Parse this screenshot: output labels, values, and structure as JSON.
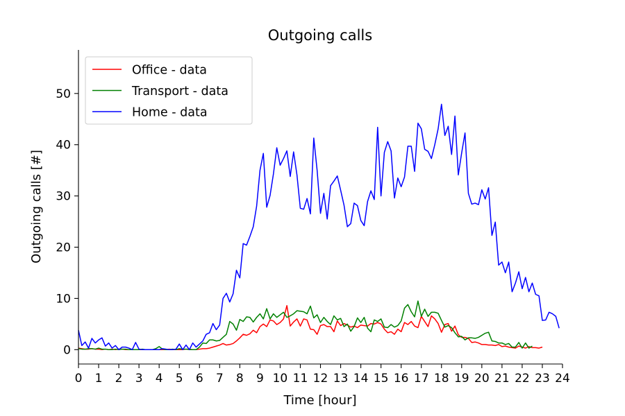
{
  "chart_data": {
    "type": "line",
    "title": "Outgoing calls",
    "xlabel": "Time [hour]",
    "ylabel": "Outgoing calls [#]",
    "xlim": [
      0,
      24
    ],
    "ylim": [
      -2.8,
      58.5
    ],
    "xticks": [
      "0",
      "1",
      "2",
      "3",
      "4",
      "5",
      "6",
      "7",
      "8",
      "9",
      "10",
      "11",
      "12",
      "13",
      "14",
      "15",
      "16",
      "17",
      "18",
      "19",
      "20",
      "21",
      "22",
      "23",
      "24"
    ],
    "yticks": [
      "0",
      "10",
      "20",
      "30",
      "40",
      "50"
    ],
    "grid": false,
    "legend_position": "top-left",
    "x_step_hours": 0.16667,
    "series": [
      {
        "name": "Office - data",
        "color": "#ff0000",
        "values": [
          0.3,
          0.2,
          0.1,
          0.1,
          0.2,
          0.1,
          0.1,
          0,
          0.1,
          0,
          0.1,
          0,
          0.1,
          0.1,
          0,
          0,
          0,
          0,
          0,
          0,
          0,
          0,
          0,
          0,
          0,
          0,
          0,
          0.1,
          0,
          0,
          0,
          0,
          0.1,
          0.1,
          0,
          0,
          0.1,
          0.2,
          0.2,
          0.3,
          0.5,
          0.7,
          0.9,
          1.2,
          0.9,
          1.0,
          1.2,
          1.7,
          2.3,
          3.0,
          2.8,
          3.1,
          3.8,
          3.3,
          4.5,
          5.0,
          4.5,
          5.8,
          5.6,
          4.9,
          5.3,
          6.0,
          8.6,
          4.6,
          5.4,
          6.0,
          4.6,
          6.0,
          5.8,
          4.0,
          3.9,
          3.0,
          4.7,
          4.9,
          4.5,
          4.5,
          3.5,
          5.6,
          4.7,
          5.1,
          4.8,
          4.4,
          4.6,
          4.3,
          4.8,
          4.7,
          4.6,
          5.1,
          5.0,
          5.3,
          5.0,
          4.0,
          3.3,
          3.5,
          3.0,
          4.0,
          3.5,
          5.3,
          4.9,
          5.5,
          4.6,
          4.3,
          6.5,
          5.5,
          4.5,
          6.6,
          6.0,
          5.1,
          3.4,
          4.9,
          5.1,
          3.6,
          4.6,
          2.9,
          2.4,
          2.4,
          2.2,
          1.4,
          1.5,
          1.3,
          1.0,
          1.0,
          0.9,
          0.9,
          0.8,
          1.0,
          0.6,
          0.7,
          0.5,
          0.4,
          0.3,
          0.7,
          0.5,
          0.3,
          0.6,
          0.4,
          0.4,
          0.3,
          0.5
        ]
      },
      {
        "name": "Transport - data",
        "color": "#008000",
        "values": [
          0.2,
          0.1,
          0.1,
          0.2,
          0.2,
          0.1,
          0.3,
          0.1,
          0.1,
          0,
          0,
          0.1,
          0,
          0.1,
          0.1,
          0,
          0,
          0,
          0,
          0.1,
          0,
          0,
          0,
          0.2,
          0.6,
          0.1,
          0,
          0,
          0.1,
          0,
          0.2,
          0.1,
          0.1,
          0,
          0,
          0,
          0.5,
          1.3,
          1.2,
          1.9,
          1.9,
          1.7,
          1.8,
          2.4,
          3.0,
          5.5,
          5.0,
          3.8,
          5.9,
          5.5,
          6.4,
          6.3,
          5.4,
          6.3,
          7.0,
          6.0,
          8.0,
          6.0,
          7.0,
          6.3,
          6.8,
          7.3,
          6.3,
          6.6,
          7.0,
          7.6,
          7.5,
          7.4,
          7.0,
          8.5,
          6.2,
          6.8,
          5.3,
          6.3,
          5.5,
          4.9,
          6.6,
          5.8,
          6.1,
          4.5,
          5.0,
          3.6,
          4.5,
          6.2,
          5.3,
          6.3,
          4.2,
          3.5,
          5.8,
          5.5,
          6.0,
          4.4,
          4.3,
          4.9,
          4.4,
          4.7,
          5.6,
          8.1,
          8.8,
          7.4,
          6.4,
          9.5,
          6.5,
          7.9,
          6.5,
          7.3,
          7.3,
          7.1,
          5.7,
          4.4,
          4.7,
          4.3,
          3.3,
          2.5,
          2.6,
          1.9,
          2.3,
          2.3,
          2.2,
          2.4,
          2.8,
          3.2,
          3.4,
          1.7,
          1.6,
          1.3,
          1.3,
          1.0,
          1.2,
          0.5,
          0.5,
          1.4,
          0.3,
          1.3,
          0.3,
          0.7
        ]
      },
      {
        "name": "Home - data",
        "color": "#0000ff",
        "values": [
          3.8,
          0.8,
          1.5,
          0.3,
          2.2,
          1.3,
          1.9,
          2.3,
          0.7,
          1.3,
          0.3,
          0.8,
          0,
          0.5,
          0.5,
          0.3,
          0,
          1.4,
          0.1,
          0,
          0,
          0,
          0,
          0,
          0,
          0.2,
          0.1,
          0,
          0,
          0.1,
          1.1,
          0,
          0.9,
          0,
          1.3,
          0.5,
          1.1,
          1.7,
          3.0,
          3.3,
          5.1,
          3.9,
          4.8,
          10.0,
          11.0,
          9.3,
          10.9,
          15.5,
          14.0,
          20.7,
          20.4,
          22.1,
          24.0,
          28.0,
          35.0,
          38.3,
          27.8,
          30.1,
          34.3,
          39.4,
          36.0,
          37.3,
          38.8,
          33.8,
          38.6,
          34.1,
          27.6,
          27.4,
          29.5,
          26.5,
          41.3,
          35.0,
          26.6,
          30.5,
          25.5,
          32.0,
          32.9,
          33.9,
          31.1,
          28.2,
          24.0,
          24.6,
          28.6,
          28.1,
          25.2,
          24.2,
          28.9,
          31.0,
          29.3,
          43.4,
          30.0,
          38.5,
          40.6,
          38.8,
          29.6,
          33.5,
          31.8,
          33.7,
          39.7,
          39.7,
          34.8,
          44.2,
          43.1,
          39.1,
          38.7,
          37.3,
          40.0,
          43.1,
          47.9,
          41.8,
          43.6,
          38.1,
          45.6,
          34.1,
          38.4,
          42.3,
          30.5,
          28.4,
          28.6,
          28.3,
          31.2,
          29.4,
          31.6,
          22.3,
          24.9,
          16.5,
          17.1,
          15.0,
          17.1,
          11.3,
          13.0,
          15.2,
          11.9,
          14.1,
          11.3,
          13.0,
          10.8,
          10.5,
          5.7,
          5.8,
          7.3,
          7.0,
          6.5,
          4.2
        ]
      }
    ]
  }
}
